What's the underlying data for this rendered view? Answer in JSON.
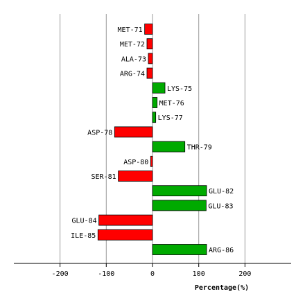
{
  "chart_data": {
    "type": "bar",
    "orientation": "horizontal",
    "xlabel": "Percentage(%)",
    "ylabel": "",
    "xlim": [
      -300,
      300
    ],
    "xticks": [
      -200,
      -100,
      0,
      100,
      200
    ],
    "xtick_labels": [
      "-200",
      "-100",
      "0",
      "100",
      "200"
    ],
    "grid": "vertical",
    "colors": {
      "positive": "#00aa00",
      "negative": "#ff0000",
      "grid": "#999999",
      "axis": "#000000"
    },
    "categories": [
      "MET-71",
      "MET-72",
      "ALA-73",
      "ARG-74",
      "LYS-75",
      "MET-76",
      "LYS-77",
      "ASP-78",
      "THR-79",
      "ASP-80",
      "SER-81",
      "GLU-82",
      "GLU-83",
      "GLU-84",
      "ILE-85",
      "ARG-86"
    ],
    "values": [
      -17,
      -12,
      -9,
      -12,
      27,
      10,
      7,
      -82,
      70,
      -4,
      -74,
      117,
      116,
      -116,
      -118,
      117
    ]
  }
}
